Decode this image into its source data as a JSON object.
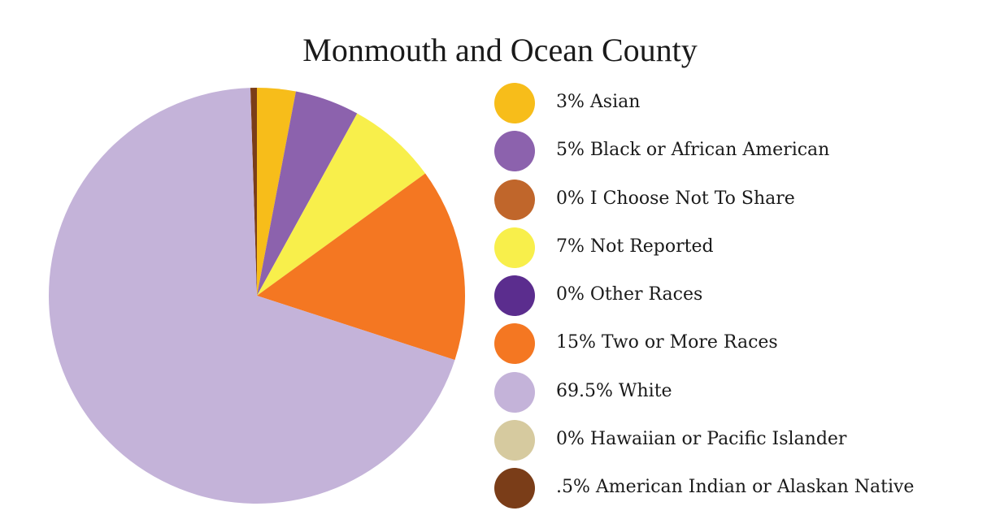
{
  "chart_data": {
    "type": "pie",
    "title": "Monmouth and Ocean County",
    "legend_position": "right",
    "slices": [
      {
        "label": "3% Asian",
        "value": 3,
        "color": "#f7bd1a"
      },
      {
        "label": "5% Black or African American",
        "value": 5,
        "color": "#8c62ad"
      },
      {
        "label": "0% I Choose Not To Share",
        "value": 0,
        "color": "#c0662b"
      },
      {
        "label": "7% Not Reported",
        "value": 7,
        "color": "#f8ef4b"
      },
      {
        "label": "0% Other Races",
        "value": 0,
        "color": "#5b2d8e"
      },
      {
        "label": "15% Two or More Races",
        "value": 15,
        "color": "#f47722"
      },
      {
        "label": "69.5% White",
        "value": 69.5,
        "color": "#c4b3d9"
      },
      {
        "label": "0% Hawaiian or Pacific Islander",
        "value": 0,
        "color": "#d6ca9f"
      },
      {
        "label": ".5% American Indian or Alaskan Native",
        "value": 0.5,
        "color": "#7a3d18"
      }
    ]
  }
}
